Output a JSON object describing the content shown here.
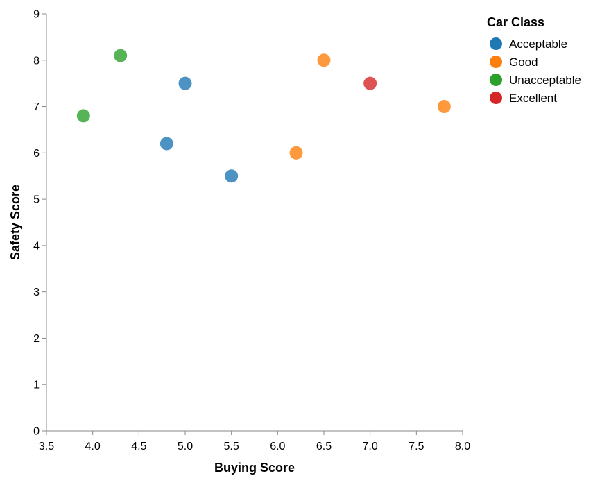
{
  "chart_data": {
    "type": "scatter",
    "title": "",
    "xlabel": "Buying Score",
    "ylabel": "Safety Score",
    "xlim": [
      3.5,
      8.0
    ],
    "ylim": [
      0,
      9
    ],
    "x_ticks": [
      "3.5",
      "4.0",
      "4.5",
      "5.0",
      "5.5",
      "6.0",
      "6.5",
      "7.0",
      "7.5",
      "8.0"
    ],
    "y_ticks": [
      "0",
      "1",
      "2",
      "3",
      "4",
      "5",
      "6",
      "7",
      "8",
      "9"
    ],
    "grid": false,
    "legend": {
      "title": "Car Class",
      "placement": "right"
    },
    "series": [
      {
        "name": "Acceptable",
        "color": "#1f77b4",
        "points": [
          {
            "x": 5.0,
            "y": 7.5
          },
          {
            "x": 4.8,
            "y": 6.2
          },
          {
            "x": 5.5,
            "y": 5.5
          }
        ]
      },
      {
        "name": "Good",
        "color": "#ff7f0e",
        "points": [
          {
            "x": 6.5,
            "y": 8.0
          },
          {
            "x": 7.8,
            "y": 7.0
          },
          {
            "x": 6.2,
            "y": 6.0
          }
        ]
      },
      {
        "name": "Unacceptable",
        "color": "#2ca02c",
        "points": [
          {
            "x": 4.3,
            "y": 8.1
          },
          {
            "x": 3.9,
            "y": 6.8
          }
        ]
      },
      {
        "name": "Excellent",
        "color": "#d62728",
        "points": [
          {
            "x": 7.0,
            "y": 7.5
          }
        ]
      }
    ]
  }
}
